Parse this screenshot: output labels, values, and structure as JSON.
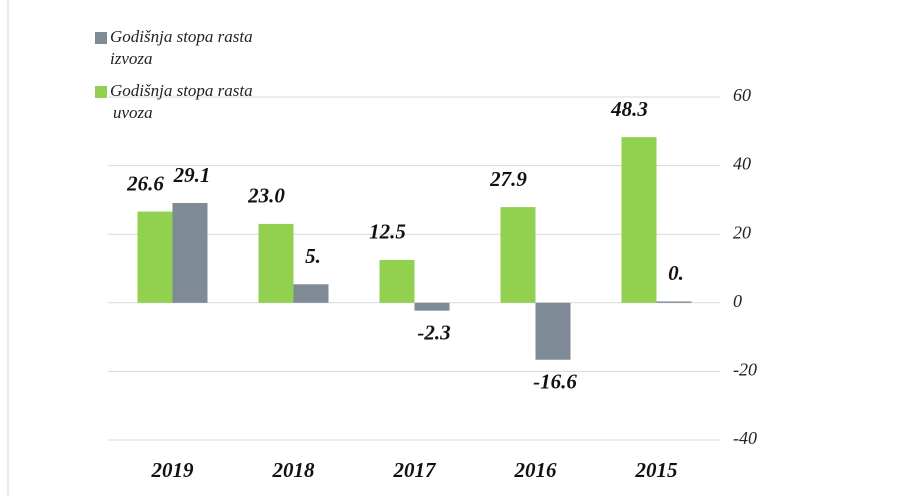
{
  "chart_data": {
    "type": "bar",
    "categories": [
      "2019",
      "2018",
      "2017",
      "2016",
      "2015"
    ],
    "series": [
      {
        "name": "Godišnja stopa rasta izvoza",
        "color": "#7f8a97",
        "values": [
          29.1,
          5.4,
          -2.3,
          -16.6,
          0.4
        ],
        "value_labels": [
          "29.1",
          "5.",
          "-2.3",
          "-16.6",
          "0."
        ]
      },
      {
        "name": "Godišnja stopa rasta uvoza",
        "color": "#92d050",
        "values": [
          26.6,
          23.0,
          12.5,
          27.9,
          48.3
        ],
        "value_labels": [
          "26.6",
          "23.0",
          "12.5",
          "27.9",
          "48.3"
        ]
      }
    ],
    "ylim": [
      -40,
      60
    ],
    "yticks": [
      -40,
      -20,
      0,
      20,
      40,
      60
    ],
    "grid": true,
    "legend": "top-left"
  }
}
